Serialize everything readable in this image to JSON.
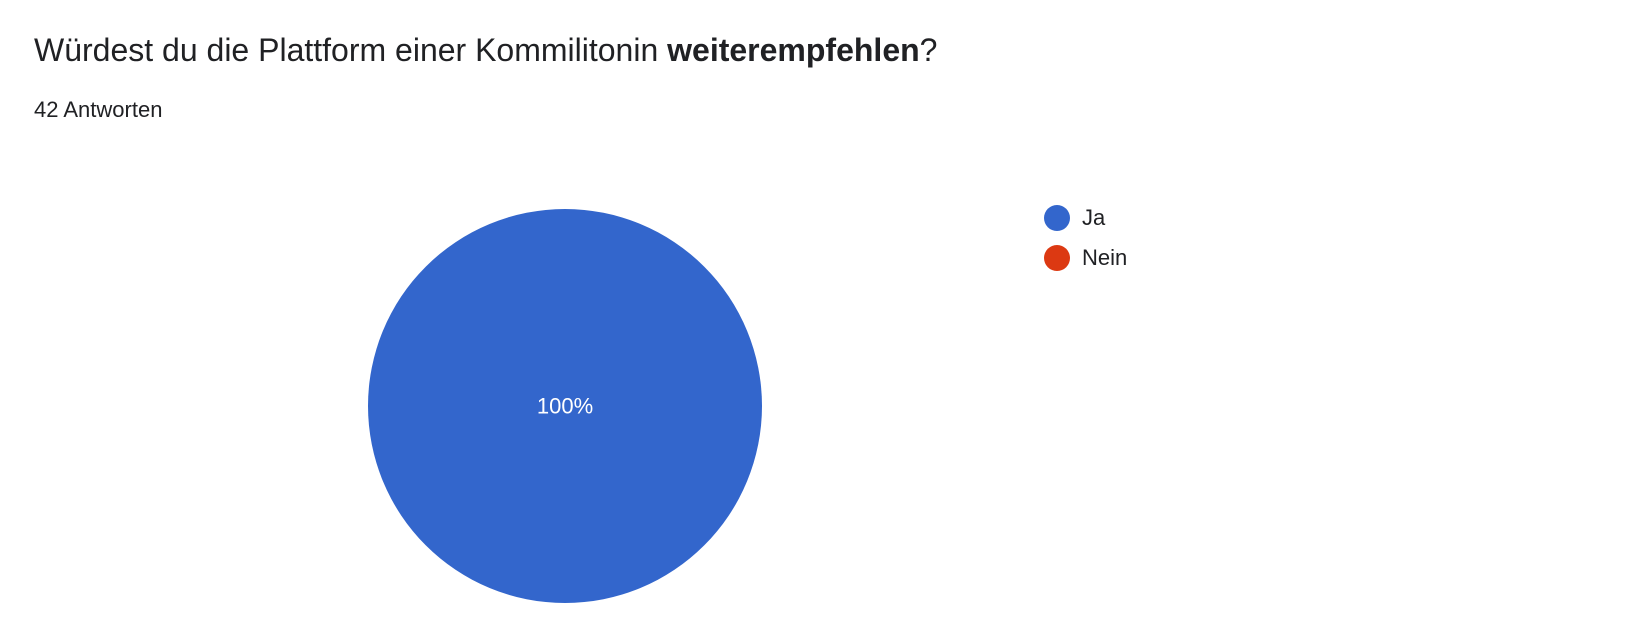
{
  "question": {
    "text_before": "Würdest du die Plattform einer Kommilitonin ",
    "text_bold": "weiterempfehlen",
    "text_after": "?"
  },
  "response_count": "42 Antworten",
  "chart_data": {
    "type": "pie",
    "categories": [
      "Ja",
      "Nein"
    ],
    "values": [
      100,
      0
    ],
    "slice_labels": [
      "100%",
      ""
    ],
    "colors": [
      "#3366cc",
      "#dc3912"
    ],
    "legend_position": "right"
  }
}
